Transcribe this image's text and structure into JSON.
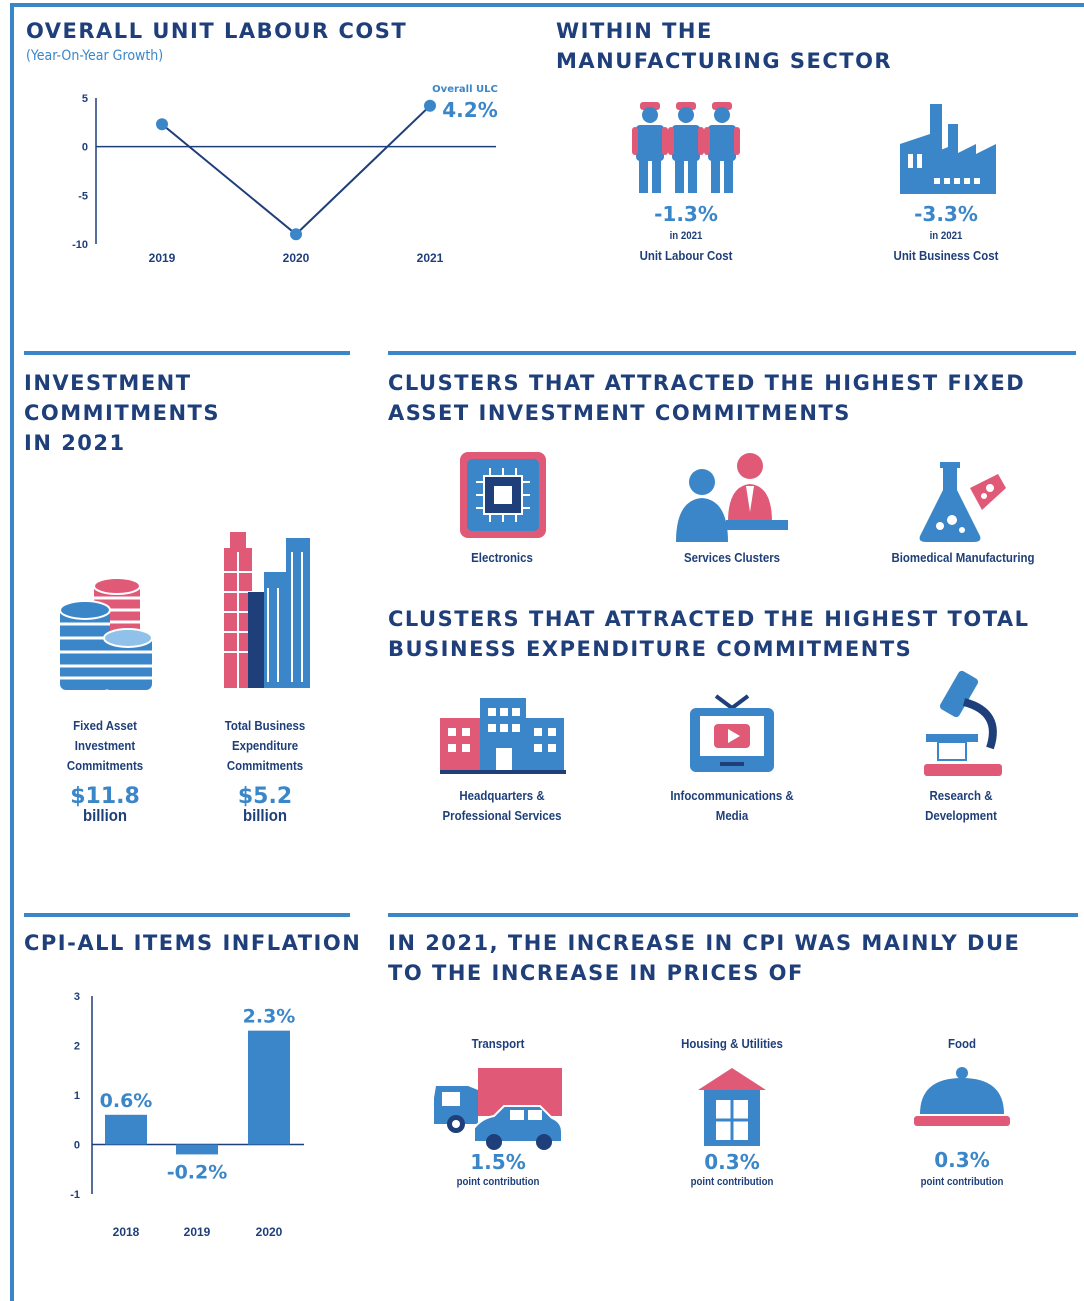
{
  "ulc": {
    "title": "OVERALL UNIT LABOUR COST",
    "subtitle": "(Year-On-Year Growth)",
    "annotation_label": "Overall ULC",
    "annotation_value": "4.2%"
  },
  "manufacturing": {
    "title": "WITHIN THE\nMANUFACTURING SECTOR",
    "items": [
      {
        "value": "-1.3%",
        "year": "in 2021",
        "label": "Unit Labour Cost",
        "icon": "workers-icon"
      },
      {
        "value": "-3.3%",
        "year": "in 2021",
        "label": "Unit Business Cost",
        "icon": "factory-icon"
      }
    ]
  },
  "investment": {
    "title": "INVESTMENT\nCOMMITMENTS\nIN 2021",
    "items": [
      {
        "label": "Fixed Asset\nInvestment\nCommitments",
        "value": "$11.8",
        "unit": "billion",
        "icon": "coin-stacks-icon"
      },
      {
        "label": "Total Business\nExpenditure\nCommitments",
        "value": "$5.2",
        "unit": "billion",
        "icon": "skyscrapers-icon"
      }
    ]
  },
  "fai_clusters": {
    "title": "CLUSTERS THAT ATTRACTED  THE HIGHEST FIXED\nASSET INVESTMENT COMMITMENTS",
    "items": [
      {
        "label": "Electronics",
        "icon": "microchip-icon"
      },
      {
        "label": "Services Clusters",
        "icon": "service-people-icon"
      },
      {
        "label": "Biomedical Manufacturing",
        "icon": "flask-icon"
      }
    ]
  },
  "tbe_clusters": {
    "title": "CLUSTERS THAT ATTRACTED THE HIGHEST TOTAL\nBUSINESS EXPENDITURE COMMITMENTS",
    "items": [
      {
        "label": "Headquarters &\nProfessional Services",
        "icon": "office-buildings-icon"
      },
      {
        "label": "Infocommunications &\nMedia",
        "icon": "television-icon"
      },
      {
        "label": "Research &\nDevelopment",
        "icon": "microscope-icon"
      }
    ]
  },
  "cpi": {
    "title": "CPI-ALL ITEMS INFLATION"
  },
  "cpi_drivers": {
    "title": "IN 2021, THE INCREASE IN CPI WAS MAINLY DUE\nTO THE INCREASE IN PRICES OF",
    "items": [
      {
        "label": "Transport",
        "value": "1.5%",
        "note": "point contribution",
        "icon": "truck-car-icon"
      },
      {
        "label": "Housing & Utilities",
        "value": "0.3%",
        "note": "point contribution",
        "icon": "house-icon"
      },
      {
        "label": "Food",
        "value": "0.3%",
        "note": "point contribution",
        "icon": "food-cloche-icon"
      }
    ]
  },
  "colors": {
    "blue": "#3a86c8",
    "navy": "#1f3f7a",
    "pink": "#e05a78"
  },
  "chart_data": [
    {
      "type": "line",
      "x": [
        "2019",
        "2020",
        "2021"
      ],
      "values": [
        2.3,
        -9.0,
        4.2
      ],
      "yticks": [
        "5",
        "0",
        "-5",
        "-10"
      ],
      "ylim": [
        -10,
        5
      ]
    },
    {
      "type": "bar",
      "categories": [
        "2018",
        "2019",
        "2020"
      ],
      "values": [
        0.6,
        -0.2,
        2.3
      ],
      "data_labels": [
        "0.6%",
        "-0.2%",
        "2.3%"
      ],
      "yticks": [
        "3",
        "2",
        "1",
        "0",
        "-1"
      ],
      "ylim": [
        -1,
        3
      ]
    }
  ]
}
